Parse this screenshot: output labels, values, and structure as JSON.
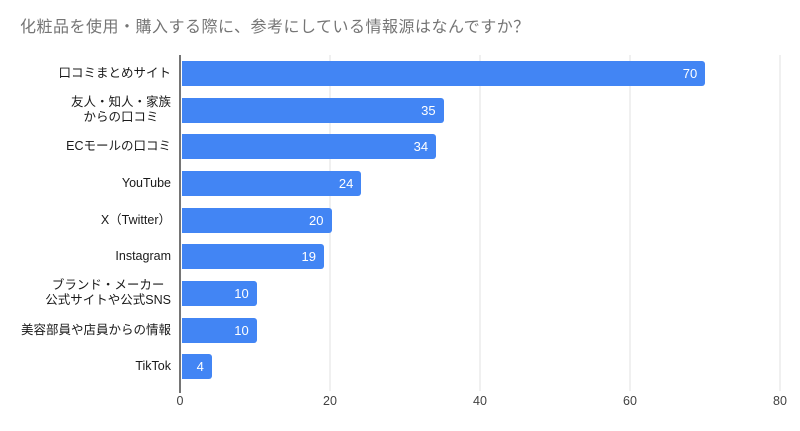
{
  "title": "化粧品を使用・購入する際に、参考にしている情報源はなんですか？",
  "colors": {
    "bar": "#4285f4",
    "title_text": "#757575",
    "axis_line": "#757575",
    "gridline": "#e0e0e0",
    "category_text": "#1a1a1a",
    "tick_text": "#424242",
    "value_text": "#ffffff"
  },
  "chart_data": {
    "type": "bar",
    "orientation": "horizontal",
    "title": "化粧品を使用・購入する際に、参考にしている情報源はなんですか？",
    "categories": [
      "口コミまとめサイト",
      "友人・知人・家族からの口コミ",
      "ECモールの口コミ",
      "YouTube",
      "X（Twitter）",
      "Instagram",
      "ブランド・メーカー公式サイトや公式SNS",
      "美容部員や店員からの情報",
      "TikTok"
    ],
    "category_label_lines": [
      [
        "口コミまとめサイト"
      ],
      [
        "友人・知人・家族",
        "からの口コミ"
      ],
      [
        "ECモールの口コミ"
      ],
      [
        "YouTube"
      ],
      [
        "X（Twitter）"
      ],
      [
        "Instagram"
      ],
      [
        "ブランド・メーカー",
        "公式サイトや公式SNS"
      ],
      [
        "美容部員や店員からの情報"
      ],
      [
        "TikTok"
      ]
    ],
    "values": [
      70,
      35,
      34,
      24,
      20,
      19,
      10,
      10,
      4
    ],
    "xlabel": "",
    "ylabel": "",
    "xlim": [
      0,
      80
    ],
    "x_ticks": [
      0,
      20,
      40,
      60,
      80
    ],
    "grid": true,
    "legend": false,
    "value_label_position": "inside-end"
  }
}
